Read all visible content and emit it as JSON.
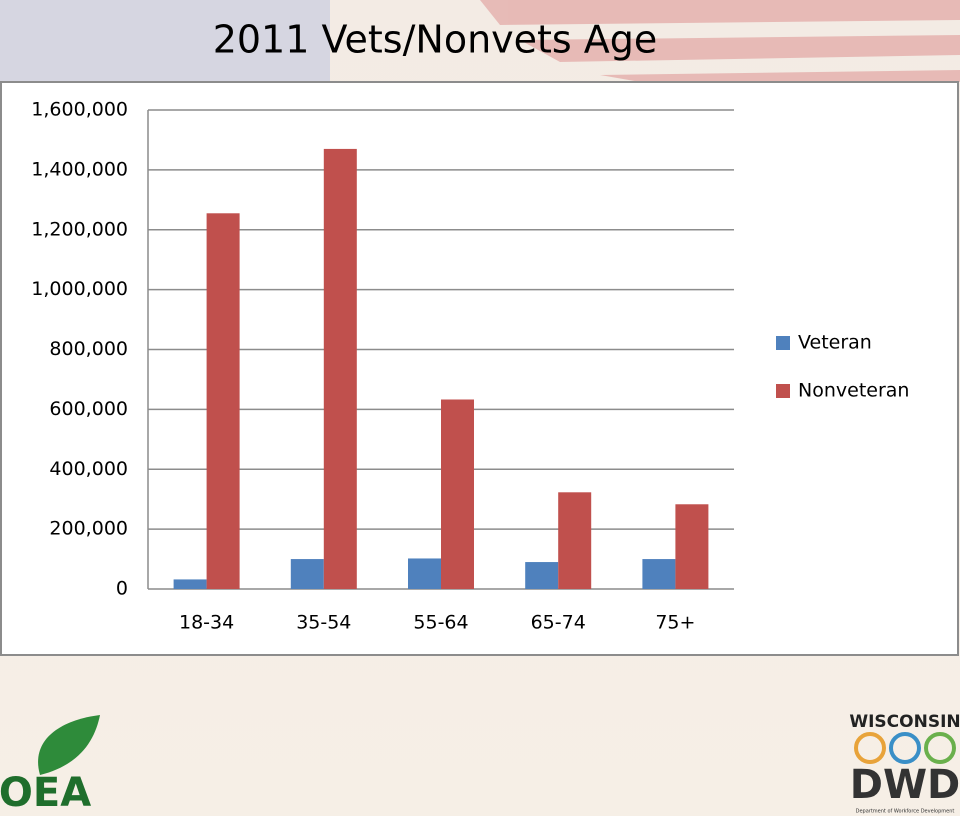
{
  "chart_data": {
    "type": "bar",
    "title": "2011 Vets/Nonvets Age",
    "categories": [
      "18-34",
      "35-54",
      "55-64",
      "65-74",
      "75+"
    ],
    "series": [
      {
        "name": "Veteran",
        "color": "#4f81bd",
        "values": [
          32000,
          100000,
          102000,
          90000,
          100000
        ]
      },
      {
        "name": "Nonveteran",
        "color": "#c0504d",
        "values": [
          1255000,
          1470000,
          633000,
          323000,
          283000
        ]
      }
    ],
    "ylim": [
      0,
      1600000
    ],
    "yticks": [
      0,
      {
        "value": 200000,
        "label": "200,000"
      },
      {
        "value": 400000,
        "label": "400,000"
      },
      {
        "value": 600000,
        "label": "600,000"
      },
      {
        "value": 800000,
        "label": "800,000"
      },
      {
        "value": 1000000,
        "label": "1,000,000"
      },
      {
        "value": 1200000,
        "label": "1,200,000"
      },
      {
        "value": 1400000,
        "label": "1,400,000"
      },
      {
        "value": 1600000,
        "label": "1,600,000"
      }
    ],
    "grid": true,
    "legend": "right"
  },
  "logos": {
    "left": "OEA",
    "right_top": "WISCONSIN",
    "right_main": "DWD",
    "right_caption": "Department of Workforce Development"
  }
}
